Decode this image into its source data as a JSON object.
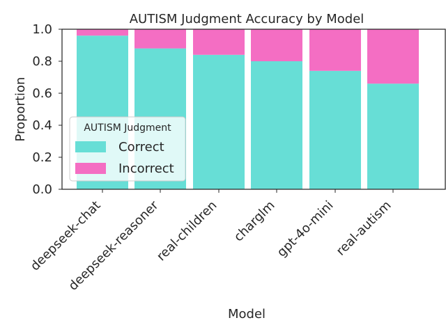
{
  "chart_data": {
    "type": "bar",
    "stacked": true,
    "title": "AUTISM Judgment Accuracy by Model",
    "xlabel": "Model",
    "ylabel": "Proportion",
    "ylim": [
      0,
      1
    ],
    "yticks": [
      "0.0",
      "0.2",
      "0.4",
      "0.6",
      "0.8",
      "1.0"
    ],
    "categories": [
      "deepseek-chat",
      "deepseek-reasoner",
      "real-children",
      "charglm",
      "gpt-4o-mini",
      "real-autism"
    ],
    "series": [
      {
        "name": "Correct",
        "color": "#67ded6",
        "values": [
          0.96,
          0.88,
          0.84,
          0.8,
          0.74,
          0.66
        ]
      },
      {
        "name": "Incorrect",
        "color": "#f46ec3",
        "values": [
          0.04,
          0.12,
          0.16,
          0.2,
          0.26,
          0.34
        ]
      }
    ],
    "legend": {
      "title": "AUTISM Judgment",
      "placement": "center-left"
    },
    "grid": false
  }
}
